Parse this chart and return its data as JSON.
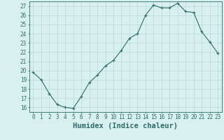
{
  "x": [
    0,
    1,
    2,
    3,
    4,
    5,
    6,
    7,
    8,
    9,
    10,
    11,
    12,
    13,
    14,
    15,
    16,
    17,
    18,
    19,
    20,
    21,
    22,
    23
  ],
  "y": [
    19.8,
    19.0,
    17.5,
    16.3,
    16.0,
    15.9,
    17.2,
    18.7,
    19.5,
    20.5,
    21.1,
    22.2,
    23.5,
    24.0,
    26.0,
    27.1,
    26.8,
    26.8,
    27.3,
    26.4,
    26.3,
    24.2,
    23.1,
    21.9
  ],
  "line_color": "#2e6b6b",
  "marker": "+",
  "marker_size": 3,
  "bg_color": "#d8f0f0",
  "grid_color": "#b8d8d8",
  "xlabel": "Humidex (Indice chaleur)",
  "xlim": [
    -0.5,
    23.5
  ],
  "ylim": [
    15.5,
    27.5
  ],
  "yticks": [
    16,
    17,
    18,
    19,
    20,
    21,
    22,
    23,
    24,
    25,
    26,
    27
  ],
  "xticks": [
    0,
    1,
    2,
    3,
    4,
    5,
    6,
    7,
    8,
    9,
    10,
    11,
    12,
    13,
    14,
    15,
    16,
    17,
    18,
    19,
    20,
    21,
    22,
    23
  ],
  "tick_label_fontsize": 5.5,
  "xlabel_fontsize": 7.5,
  "axis_color": "#2e6b6b",
  "line_width": 0.8,
  "marker_edge_width": 0.8
}
